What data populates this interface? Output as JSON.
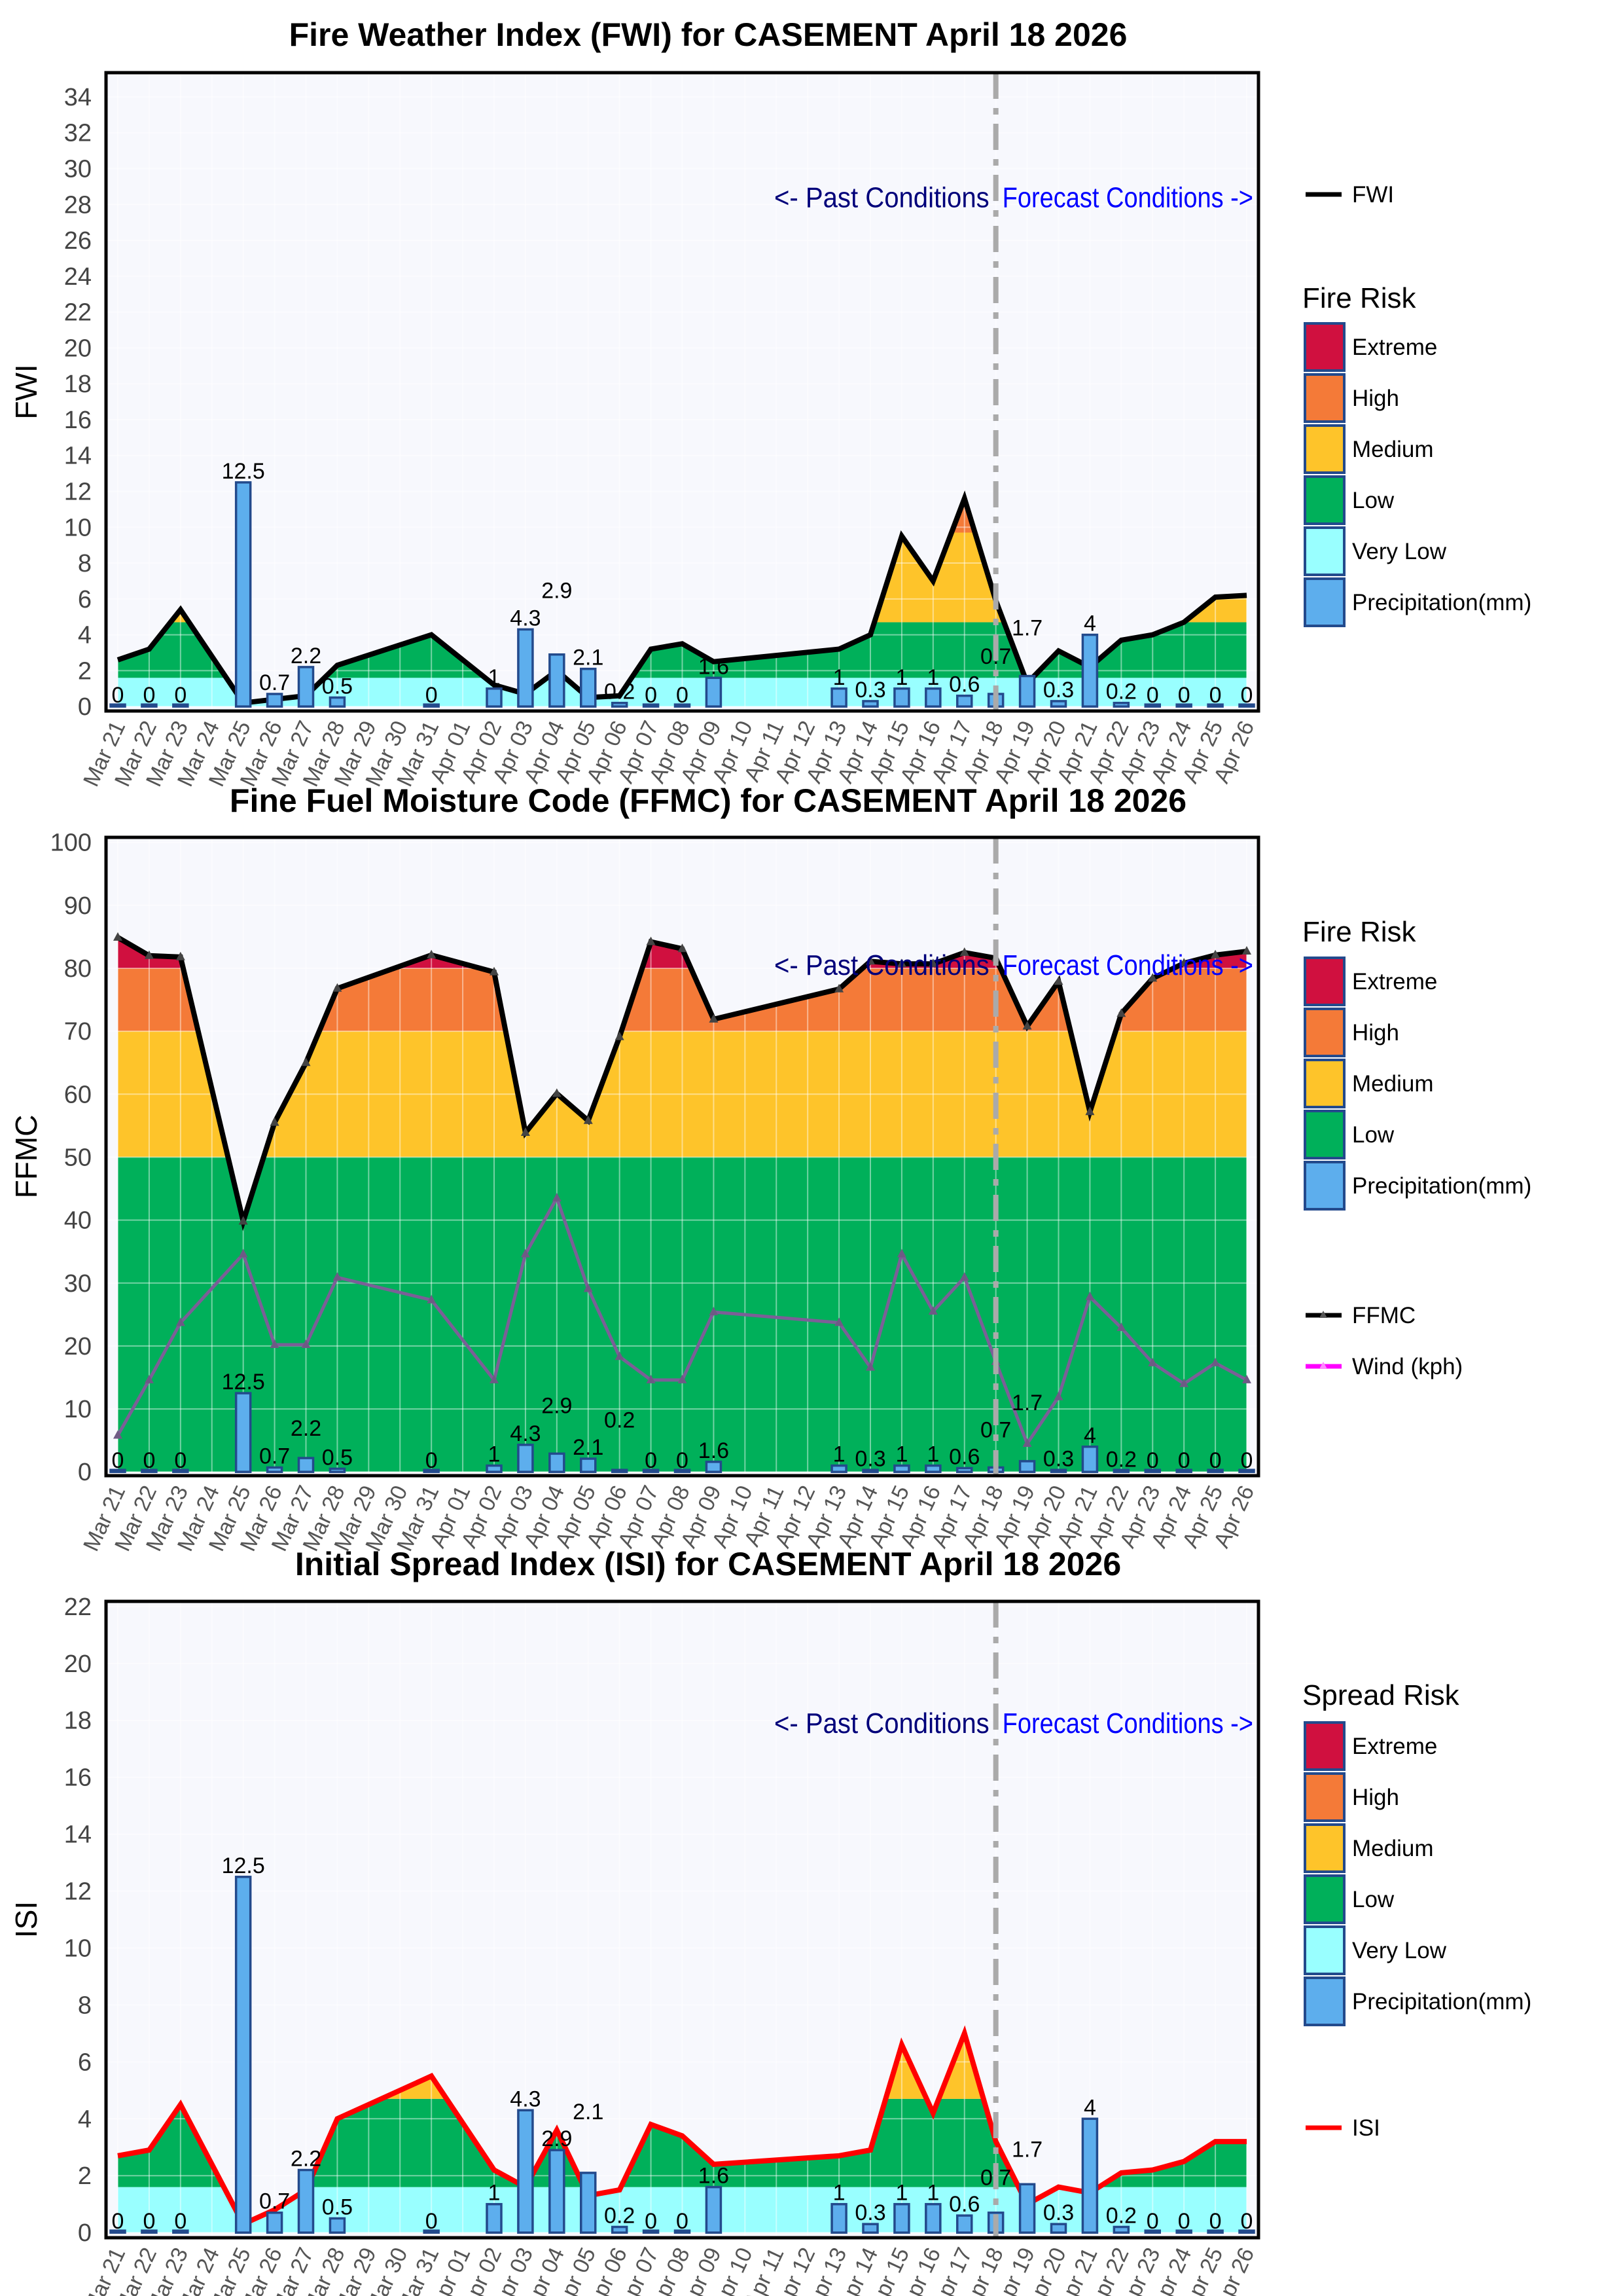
{
  "dates": [
    "Mar 21",
    "Mar 22",
    "Mar 23",
    "Mar 24",
    "Mar 25",
    "Mar 26",
    "Mar 27",
    "Mar 28",
    "Mar 29",
    "Mar 30",
    "Mar 31",
    "Apr 01",
    "Apr 02",
    "Apr 03",
    "Apr 04",
    "Apr 05",
    "Apr 06",
    "Apr 07",
    "Apr 08",
    "Apr 09",
    "Apr 10",
    "Apr 11",
    "Apr 12",
    "Apr 13",
    "Apr 14",
    "Apr 15",
    "Apr 16",
    "Apr 17",
    "Apr 18",
    "Apr 19",
    "Apr 20",
    "Apr 21",
    "Apr 22",
    "Apr 23",
    "Apr 24",
    "Apr 25",
    "Apr 26"
  ],
  "divider_date": "Apr 18",
  "labels": {
    "past": "<- Past Conditions",
    "forecast": "Forecast Conditions ->"
  },
  "colors": {
    "extreme": "#d0103f",
    "high": "#f47a38",
    "medium": "#fec42a",
    "low": "#00b05a",
    "very_low": "#99ffff",
    "precip": "#5daeed",
    "precip_border": "#234a8c",
    "past_text": "#00007a",
    "forecast_text": "#0000ff",
    "divider": "#aaaaaa",
    "plot_bg": "#f7f8fd"
  },
  "chart_data": [
    {
      "type": "area",
      "title": "Fire Weather Index (FWI) for CASEMENT April 18 2026",
      "ylabel": "FWI",
      "ylim": [
        -0.25,
        35.35
      ],
      "ytick_step": 2,
      "ytick_max": 34,
      "grid": true,
      "series": [
        {
          "name": "FWI",
          "color": "#000000",
          "markers": false,
          "values": [
            2.6,
            3.2,
            5.4,
            null,
            0.2,
            0.4,
            0.6,
            2.3,
            null,
            null,
            4.0,
            null,
            1.2,
            0.7,
            2.0,
            0.5,
            0.6,
            3.2,
            3.5,
            2.5,
            null,
            null,
            null,
            3.2,
            4.0,
            9.5,
            7.0,
            11.6,
            5.9,
            1.3,
            3.1,
            2.2,
            3.7,
            4.0,
            4.7,
            6.1,
            6.2
          ]
        }
      ],
      "band_series": "FWI",
      "bands": [
        {
          "name": "Very Low",
          "from": 0,
          "to": 1.6,
          "color": "#99ffff"
        },
        {
          "name": "Low",
          "from": 1.6,
          "to": 4.7,
          "color": "#00b05a"
        },
        {
          "name": "Medium",
          "from": 4.7,
          "to": 9.7,
          "color": "#fec42a"
        },
        {
          "name": "High",
          "from": 9.7,
          "to": 17,
          "color": "#f47a38"
        },
        {
          "name": "Extreme",
          "from": 17,
          "to": 100,
          "color": "#d0103f"
        }
      ],
      "precipitation_mm": [
        0,
        0,
        0,
        null,
        12.5,
        0.7,
        2.2,
        0.5,
        null,
        null,
        0,
        null,
        1,
        4.3,
        2.9,
        2.1,
        0.2,
        0,
        0,
        1.6,
        null,
        null,
        null,
        1,
        0.3,
        1,
        1,
        0.6,
        0.7,
        1.7,
        0.3,
        4,
        0.2,
        0,
        0,
        0,
        0
      ],
      "condition_label_y": 28.4,
      "legend_title": "Fire Risk",
      "legend_items": [
        "Extreme",
        "High",
        "Medium",
        "Low",
        "Very Low",
        "Precipitation(mm)"
      ],
      "legend_lines": [
        "FWI"
      ]
    },
    {
      "type": "area",
      "title": "Fine Fuel Moisture Code (FFMC) for CASEMENT April 18 2026",
      "ylabel": "FFMC",
      "ylim": [
        -0.6,
        100.8
      ],
      "ytick_step": 10,
      "ytick_max": 100,
      "grid": true,
      "series": [
        {
          "name": "FFMC",
          "color": "#000000",
          "markers": true,
          "values": [
            84.9,
            82.0,
            81.8,
            null,
            39.8,
            55.5,
            65.0,
            76.8,
            null,
            null,
            82.1,
            null,
            79.4,
            53.9,
            60.1,
            55.8,
            69.1,
            84.2,
            83.1,
            71.9,
            null,
            null,
            null,
            76.7,
            81.1,
            80.7,
            80.7,
            82.5,
            81.6,
            70.8,
            77.9,
            57.2,
            72.8,
            78.4,
            80.8,
            82.1,
            82.7
          ]
        },
        {
          "name": "Wind (kph)",
          "color": "#ff00ff",
          "markers": true,
          "values": [
            5.8,
            14.6,
            23.7,
            null,
            34.6,
            20.2,
            20.2,
            30.9,
            null,
            null,
            27.3,
            null,
            14.6,
            34.6,
            43.5,
            29.1,
            18.3,
            14.6,
            14.6,
            25.4,
            null,
            null,
            null,
            23.7,
            16.6,
            34.6,
            25.5,
            30.9,
            17.5,
            4.5,
            11.9,
            27.8,
            22.9,
            17.3,
            14.0,
            17.3,
            14.6
          ]
        }
      ],
      "band_series": "FFMC",
      "bands": [
        {
          "name": "Low",
          "from": 0,
          "to": 50,
          "color": "#00b05a"
        },
        {
          "name": "Medium",
          "from": 50,
          "to": 70,
          "color": "#fec42a"
        },
        {
          "name": "High",
          "from": 70,
          "to": 80,
          "color": "#f47a38"
        },
        {
          "name": "Extreme",
          "from": 80,
          "to": 200,
          "color": "#d0103f"
        }
      ],
      "precipitation_mm": [
        0,
        0,
        0,
        null,
        12.5,
        0.7,
        2.2,
        0.5,
        null,
        null,
        0,
        null,
        1,
        4.3,
        2.9,
        2.1,
        0.2,
        0,
        0,
        1.6,
        null,
        null,
        null,
        1,
        0.3,
        1,
        1,
        0.6,
        0.7,
        1.7,
        0.3,
        4,
        0.2,
        0,
        0,
        0,
        0
      ],
      "condition_label_y": 80.5,
      "legend_title": "Fire Risk",
      "legend_items": [
        "Extreme",
        "High",
        "Medium",
        "Low",
        "Precipitation(mm)"
      ],
      "legend_lines": [
        "FFMC",
        "Wind (kph)"
      ]
    },
    {
      "type": "area",
      "title": "Initial Spread Index (ISI) for CASEMENT April 18 2026",
      "ylabel": "ISI",
      "ylim": [
        -0.18,
        22.18
      ],
      "ytick_step": 2,
      "ytick_max": 22,
      "grid": true,
      "series": [
        {
          "name": "ISI",
          "color": "#ff0000",
          "markers": false,
          "values": [
            2.7,
            2.9,
            4.5,
            null,
            0.3,
            0.8,
            1.5,
            4.0,
            null,
            null,
            5.5,
            null,
            2.2,
            1.6,
            3.6,
            1.3,
            1.5,
            3.8,
            3.4,
            2.4,
            null,
            null,
            null,
            2.7,
            2.9,
            6.6,
            4.2,
            7.0,
            3.2,
            1.0,
            1.6,
            1.4,
            2.1,
            2.2,
            2.5,
            3.2,
            3.2
          ]
        }
      ],
      "band_series": "ISI",
      "bands": [
        {
          "name": "Very Low",
          "from": 0,
          "to": 1.6,
          "color": "#99ffff"
        },
        {
          "name": "Low",
          "from": 1.6,
          "to": 4.7,
          "color": "#00b05a"
        },
        {
          "name": "Medium",
          "from": 4.7,
          "to": 8,
          "color": "#fec42a"
        },
        {
          "name": "High",
          "from": 8,
          "to": 15,
          "color": "#f47a38"
        },
        {
          "name": "Extreme",
          "from": 15,
          "to": 100,
          "color": "#d0103f"
        }
      ],
      "precipitation_mm": [
        0,
        0,
        0,
        null,
        12.5,
        0.7,
        2.2,
        0.5,
        null,
        null,
        0,
        null,
        1,
        4.3,
        2.9,
        2.1,
        0.2,
        0,
        0,
        1.6,
        null,
        null,
        null,
        1,
        0.3,
        1,
        1,
        0.6,
        0.7,
        1.7,
        0.3,
        4,
        0.2,
        0,
        0,
        0,
        0
      ],
      "condition_label_y": 17.9,
      "legend_title": "Spread Risk",
      "legend_items": [
        "Extreme",
        "High",
        "Medium",
        "Low",
        "Very Low",
        "Precipitation(mm)"
      ],
      "legend_lines": [
        "ISI"
      ]
    }
  ]
}
